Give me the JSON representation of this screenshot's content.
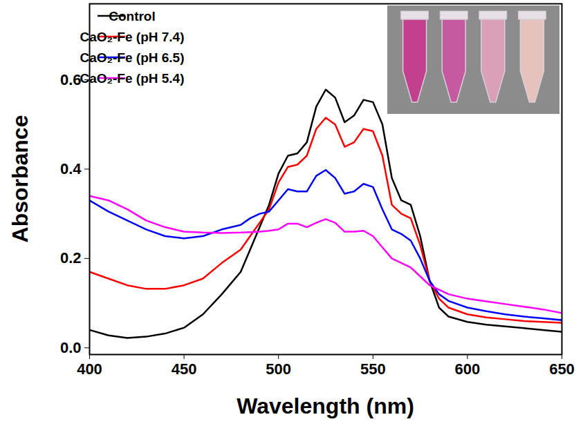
{
  "chart_data": {
    "type": "line",
    "x_label": "Wavelength (nm)",
    "y_label": "Absorbance",
    "xlim": [
      400,
      650
    ],
    "xticks": [
      400,
      450,
      500,
      550,
      600,
      650
    ],
    "ylim": [
      -0.015,
      0.77
    ],
    "yticks": [
      {
        "value": 0,
        "label": "0.0"
      },
      0.2,
      0.4,
      0.6
    ],
    "legend": "top-left",
    "grid": false,
    "x": [
      400,
      410,
      420,
      430,
      440,
      450,
      460,
      470,
      480,
      485,
      490,
      495,
      500,
      505,
      510,
      515,
      520,
      525,
      530,
      535,
      540,
      545,
      550,
      555,
      560,
      565,
      570,
      575,
      580,
      585,
      590,
      600,
      610,
      620,
      630,
      640,
      650
    ],
    "series": [
      {
        "name": "Control",
        "color": "#000000",
        "values": [
          0.04,
          0.028,
          0.022,
          0.025,
          0.032,
          0.045,
          0.075,
          0.12,
          0.17,
          0.22,
          0.27,
          0.32,
          0.39,
          0.43,
          0.435,
          0.46,
          0.54,
          0.578,
          0.56,
          0.505,
          0.52,
          0.555,
          0.55,
          0.5,
          0.38,
          0.33,
          0.32,
          0.25,
          0.15,
          0.09,
          0.07,
          0.058,
          0.052,
          0.048,
          0.044,
          0.04,
          0.036
        ]
      },
      {
        "name": "CaO₂-Fe (pH 7.4)",
        "color": "#ff0000",
        "values": [
          0.17,
          0.155,
          0.14,
          0.132,
          0.132,
          0.14,
          0.155,
          0.19,
          0.22,
          0.25,
          0.28,
          0.31,
          0.37,
          0.405,
          0.41,
          0.43,
          0.49,
          0.515,
          0.5,
          0.45,
          0.46,
          0.49,
          0.485,
          0.43,
          0.32,
          0.3,
          0.29,
          0.23,
          0.15,
          0.11,
          0.09,
          0.075,
          0.068,
          0.064,
          0.06,
          0.058,
          0.056
        ]
      },
      {
        "name": "CaO₂-Fe (pH 6.5)",
        "color": "#0000ff",
        "values": [
          0.33,
          0.305,
          0.285,
          0.265,
          0.25,
          0.245,
          0.25,
          0.265,
          0.275,
          0.29,
          0.3,
          0.305,
          0.33,
          0.355,
          0.35,
          0.35,
          0.385,
          0.398,
          0.38,
          0.345,
          0.35,
          0.367,
          0.36,
          0.31,
          0.265,
          0.255,
          0.24,
          0.2,
          0.15,
          0.12,
          0.105,
          0.09,
          0.082,
          0.075,
          0.07,
          0.066,
          0.062
        ]
      },
      {
        "name": "CaO₂-Fe (pH 5.4)",
        "color": "#ff00ff",
        "values": [
          0.34,
          0.33,
          0.31,
          0.285,
          0.27,
          0.26,
          0.258,
          0.257,
          0.258,
          0.259,
          0.26,
          0.262,
          0.265,
          0.278,
          0.278,
          0.27,
          0.28,
          0.288,
          0.28,
          0.26,
          0.26,
          0.262,
          0.25,
          0.225,
          0.2,
          0.19,
          0.18,
          0.16,
          0.14,
          0.13,
          0.12,
          0.11,
          0.104,
          0.098,
          0.092,
          0.086,
          0.078
        ]
      }
    ]
  }
}
